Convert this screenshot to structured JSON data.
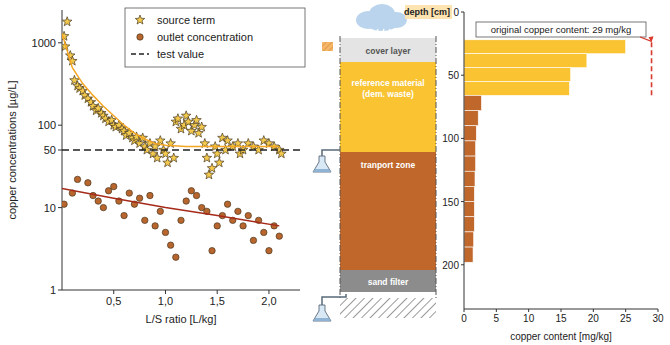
{
  "chart_data": [
    {
      "type": "scatter",
      "xlabel": "L/S ratio [L/kg]",
      "ylabel": "copper concentrations [µg/L]",
      "log": "y",
      "grid": false,
      "legend": "upper right",
      "xlim": [
        0,
        2.3
      ],
      "ylim": [
        1,
        2500
      ],
      "xticks": [
        {
          "value": 0.5,
          "label": "0,5"
        },
        {
          "value": 1.0,
          "label": "1,0"
        },
        {
          "value": 1.5,
          "label": "1,5"
        },
        {
          "value": 2.0,
          "label": "2,0"
        }
      ],
      "yticks": [
        1,
        10,
        50,
        100,
        1000
      ],
      "series": [
        {
          "name": "source term",
          "type": "scatter",
          "marker": "star",
          "color": "#f2c94c",
          "x": [
            0.02,
            0.05,
            0.03,
            0.08,
            0.1,
            0.12,
            0.15,
            0.17,
            0.2,
            0.22,
            0.25,
            0.28,
            0.3,
            0.33,
            0.35,
            0.38,
            0.4,
            0.42,
            0.45,
            0.48,
            0.5,
            0.52,
            0.55,
            0.58,
            0.6,
            0.62,
            0.65,
            0.68,
            0.7,
            0.72,
            0.75,
            0.78,
            0.8,
            0.82,
            0.85,
            0.88,
            0.9,
            0.92,
            0.95,
            0.98,
            1.0,
            1.02,
            1.05,
            1.08,
            1.1,
            1.12,
            1.15,
            1.18,
            1.2,
            1.22,
            1.25,
            1.28,
            1.3,
            1.32,
            1.35,
            1.38,
            1.4,
            1.42,
            1.45,
            1.48,
            1.5,
            1.52,
            1.55,
            1.58,
            1.6,
            1.65,
            1.7,
            1.72,
            1.75,
            1.8,
            1.85,
            1.9,
            1.95,
            2.0,
            2.05,
            2.1,
            2.12
          ],
          "values": [
            1200,
            1800,
            900,
            700,
            600,
            350,
            300,
            280,
            260,
            230,
            210,
            190,
            170,
            150,
            160,
            140,
            130,
            120,
            110,
            115,
            100,
            95,
            100,
            90,
            85,
            75,
            80,
            70,
            65,
            72,
            60,
            70,
            55,
            50,
            60,
            45,
            55,
            40,
            65,
            50,
            45,
            35,
            60,
            40,
            110,
            120,
            90,
            100,
            130,
            110,
            85,
            100,
            115,
            80,
            95,
            60,
            40,
            25,
            30,
            55,
            45,
            35,
            70,
            50,
            65,
            55,
            60,
            45,
            50,
            60,
            55,
            50,
            65,
            60,
            55,
            50,
            45
          ]
        },
        {
          "name": "outlet concentration",
          "type": "scatter",
          "marker": "circle",
          "color": "#b8652e",
          "x": [
            0.02,
            0.1,
            0.15,
            0.25,
            0.3,
            0.35,
            0.4,
            0.45,
            0.5,
            0.55,
            0.6,
            0.65,
            0.7,
            0.75,
            0.8,
            0.85,
            0.9,
            0.95,
            1.0,
            1.05,
            1.1,
            1.15,
            1.2,
            1.25,
            1.3,
            1.35,
            1.4,
            1.45,
            1.5,
            1.55,
            1.6,
            1.65,
            1.7,
            1.75,
            1.8,
            1.85,
            1.9,
            1.95,
            2.0,
            2.05,
            2.1
          ],
          "values": [
            11,
            15,
            22,
            20,
            14,
            12,
            10,
            16,
            18,
            12,
            8,
            15,
            11,
            13,
            7,
            14,
            6,
            9,
            5,
            3.5,
            2.5,
            7,
            12,
            16,
            14,
            10,
            9,
            3,
            6,
            8,
            11,
            7,
            9,
            6,
            8,
            4,
            7,
            5,
            3,
            6,
            4.5
          ]
        },
        {
          "name": "test value",
          "type": "line",
          "line_style": "dashed",
          "color": "#222222",
          "x": [
            0,
            2.3
          ],
          "values": [
            50,
            50
          ]
        },
        {
          "type": "line",
          "line_style": "solid",
          "color": "#f5a623",
          "x": [
            0,
            0.1,
            0.2,
            0.3,
            0.4,
            0.5,
            0.6,
            0.7,
            0.8,
            0.9,
            1.0,
            1.2,
            1.5,
            1.8,
            2.1
          ],
          "values": [
            1300,
            500,
            320,
            230,
            170,
            130,
            100,
            80,
            68,
            60,
            57,
            55,
            55,
            55,
            55
          ]
        },
        {
          "type": "line",
          "line_style": "solid",
          "color": "#a52a1a",
          "x": [
            0,
            0.5,
            1.0,
            1.5,
            2.1
          ],
          "values": [
            17,
            13,
            10,
            8,
            6
          ]
        }
      ]
    },
    {
      "type": "bar",
      "orientation": "horizontal",
      "ylabel": "depth [cm]",
      "xlabel": "copper content [mg/kg]",
      "grid": false,
      "xlim": [
        0,
        30
      ],
      "xticks": [
        0,
        5,
        10,
        15,
        20,
        25,
        30
      ],
      "ylim": [
        0,
        235
      ],
      "yticks": [
        0,
        50,
        100,
        150,
        200
      ],
      "bins": [
        22,
        33,
        44,
        55,
        66,
        78,
        90,
        102,
        114,
        126,
        138,
        150,
        162,
        174,
        186,
        198
      ],
      "values": [
        25,
        19,
        16.5,
        16.3,
        2.7,
        2.2,
        1.9,
        1.8,
        1.8,
        1.7,
        1.6,
        1.6,
        1.6,
        1.5,
        1.4
      ],
      "colors": [
        "#f9c332",
        "#f9c332",
        "#f9c332",
        "#f9c332",
        "#c0672c",
        "#c0672c",
        "#c0672c",
        "#c0672c",
        "#c0672c",
        "#c0672c",
        "#c0672c",
        "#c0672c",
        "#c0672c",
        "#c0672c",
        "#c0672c"
      ],
      "annotations": [
        {
          "text": "original copper content: 29 mg/kg",
          "value": 29,
          "depths": [
            24,
            68
          ],
          "color": "#d9392b"
        }
      ]
    }
  ],
  "diagram": {
    "layers": [
      {
        "label": "cover layer"
      },
      {
        "label": "reference material",
        "sublabel": "(dem. waste)"
      },
      {
        "label": "tranport zone"
      },
      {
        "label": "sand filter"
      }
    ]
  }
}
